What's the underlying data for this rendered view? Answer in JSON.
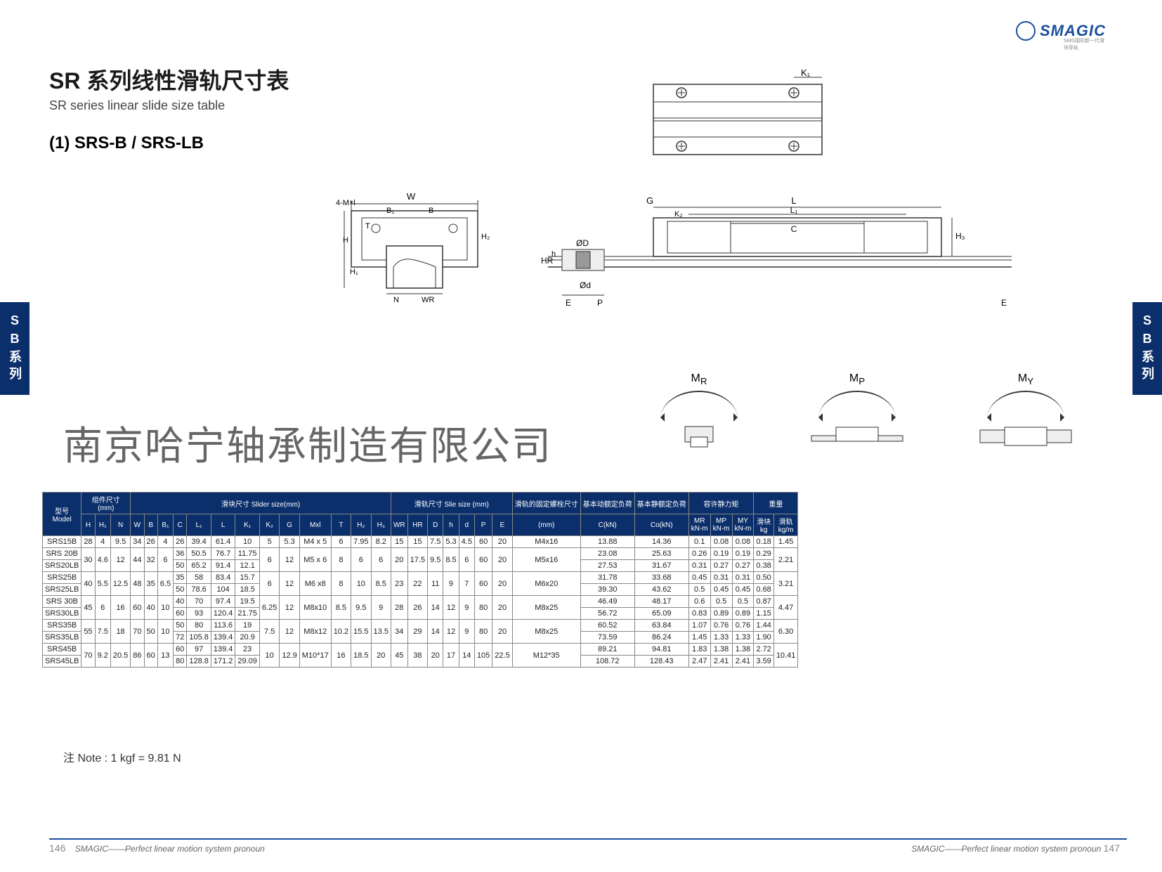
{
  "brand": {
    "name": "SMAGIC",
    "tagline": "SMG国际新一代滑块导轨",
    "color": "#1a4f9c"
  },
  "page": {
    "title_zh": "SR 系列线性滑轨尺寸表",
    "title_en": "SR series linear slide size table",
    "subtitle": "(1) SRS-B / SRS-LB",
    "side_tab": "SB系列",
    "company": "南京哈宁轴承制造有限公司",
    "note": "注 Note : 1 kgf = 9.81 N",
    "footer_text": "SMAGIC——Perfect linear motion system pronoun",
    "page_left": "146",
    "page_right": "147"
  },
  "diagrams": {
    "front_view": {
      "labels": [
        "4-M×l",
        "W",
        "B₁",
        "B",
        "T",
        "H",
        "H₁",
        "N",
        "WR",
        "H₂"
      ]
    },
    "top_side_view": {
      "labels": [
        "K₁",
        "G",
        "L",
        "K₂",
        "L₁",
        "C",
        "ØD",
        "Ød",
        "HR",
        "h",
        "E",
        "P",
        "E",
        "H₃"
      ]
    },
    "moments": [
      {
        "symbol": "M",
        "sub": "R"
      },
      {
        "symbol": "M",
        "sub": "P"
      },
      {
        "symbol": "M",
        "sub": "Y"
      }
    ]
  },
  "table": {
    "header_groups": {
      "model": "型号\nModel",
      "assembly": "组件尺寸\n(mm)",
      "slider": "滑块尺寸 Slider size(mm)",
      "rail": "滑轨尺寸 Slie size (mm)",
      "bolt": "滑轨的固定螺栓尺寸",
      "dyn": "基本动额定负荷",
      "stat": "基本静额定负荷",
      "moment": "容许静力矩",
      "weight": "重量",
      "block_wt": "滑块\nkg",
      "rail_wt": "滑轨\nkg/m"
    },
    "columns": [
      "H",
      "H₁",
      "N",
      "W",
      "B",
      "B₁",
      "C",
      "L₁",
      "L",
      "K₁",
      "K₂",
      "G",
      "Mxl",
      "T",
      "H₂",
      "H₃",
      "WR",
      "HR",
      "D",
      "h",
      "d",
      "P",
      "E",
      "(mm)",
      "C(kN)",
      "Co(kN)",
      "MR\nkN-m",
      "MP\nkN-m",
      "MY\nkN-m"
    ],
    "rows": [
      {
        "model": "SRS15B",
        "H": "28",
        "H1": "4",
        "N": "9.5",
        "W": "34",
        "B": "26",
        "B1": "4",
        "C": "26",
        "L1": "39.4",
        "L": "61.4",
        "K1": "10",
        "K2": "5",
        "G": "5.3",
        "Mxl": "M4 x 5",
        "T": "6",
        "H2": "7.95",
        "H3": "8.2",
        "WR": "15",
        "HR": "15",
        "D": "7.5",
        "h": "5.3",
        "d": "4.5",
        "P": "60",
        "E": "20",
        "mm": "M4x16",
        "CkN": "13.88",
        "CokN": "14.36",
        "MR": "0.1",
        "MP": "0.08",
        "MY": "0.08",
        "blk": "0.18",
        "rail": "1.45",
        "span": 1
      },
      {
        "model": "SRS 20B",
        "H": "30",
        "H1": "4.6",
        "N": "12",
        "W": "44",
        "B": "32",
        "B1": "6",
        "C": "36",
        "L1": "50.5",
        "L": "76.7",
        "K1": "11.75",
        "K2": "6",
        "G": "12",
        "Mxl": "M5 x 6",
        "T": "8",
        "H2": "6",
        "H3": "6",
        "WR": "20",
        "HR": "17.5",
        "D": "9.5",
        "h": "8.5",
        "d": "6",
        "P": "60",
        "E": "20",
        "mm": "M5x16",
        "CkN": "23.08",
        "CokN": "25.63",
        "MR": "0.26",
        "MP": "0.19",
        "MY": "0.19",
        "blk": "0.29",
        "rail": "2.21",
        "span": 2
      },
      {
        "model": "SRS20LB",
        "C": "50",
        "L1": "65.2",
        "L": "91.4",
        "K1": "12.1",
        "CkN": "27.53",
        "CokN": "31.67",
        "MR": "0.31",
        "MP": "0.27",
        "MY": "0.27",
        "blk": "0.38"
      },
      {
        "model": "SRS25B",
        "H": "40",
        "H1": "5.5",
        "N": "12.5",
        "W": "48",
        "B": "35",
        "B1": "6.5",
        "C": "35",
        "L1": "58",
        "L": "83.4",
        "K1": "15.7",
        "K2": "6",
        "G": "12",
        "Mxl": "M6 x8",
        "T": "8",
        "H2": "10",
        "H3": "8.5",
        "WR": "23",
        "HR": "22",
        "D": "11",
        "h": "9",
        "d": "7",
        "P": "60",
        "E": "20",
        "mm": "M6x20",
        "CkN": "31.78",
        "CokN": "33.68",
        "MR": "0.45",
        "MP": "0.31",
        "MY": "0.31",
        "blk": "0.50",
        "rail": "3.21",
        "span": 2
      },
      {
        "model": "SRS25LB",
        "C": "50",
        "L1": "78.6",
        "L": "104",
        "K1": "18.5",
        "CkN": "39.30",
        "CokN": "43.62",
        "MR": "0.5",
        "MP": "0.45",
        "MY": "0.45",
        "blk": "0.68"
      },
      {
        "model": "SRS 30B",
        "H": "45",
        "H1": "6",
        "N": "16",
        "W": "60",
        "B": "40",
        "B1": "10",
        "C": "40",
        "L1": "70",
        "L": "97.4",
        "K1": "19.5",
        "K2": "6.25",
        "G": "12",
        "Mxl": "M8x10",
        "T": "8.5",
        "H2": "9.5",
        "H3": "9",
        "WR": "28",
        "HR": "26",
        "D": "14",
        "h": "12",
        "d": "9",
        "P": "80",
        "E": "20",
        "mm": "M8x25",
        "CkN": "46.49",
        "CokN": "48.17",
        "MR": "0.6",
        "MP": "0.5",
        "MY": "0.5",
        "blk": "0.87",
        "rail": "4.47",
        "span": 2
      },
      {
        "model": "SRS30LB",
        "C": "60",
        "L1": "93",
        "L": "120.4",
        "K1": "21.75",
        "CkN": "56.72",
        "CokN": "65.09",
        "MR": "0.83",
        "MP": "0.89",
        "MY": "0.89",
        "blk": "1.15"
      },
      {
        "model": "SRS35B",
        "H": "55",
        "H1": "7.5",
        "N": "18",
        "W": "70",
        "B": "50",
        "B1": "10",
        "C": "50",
        "L1": "80",
        "L": "113.6",
        "K1": "19",
        "K2": "7.5",
        "G": "12",
        "Mxl": "M8x12",
        "T": "10.2",
        "H2": "15.5",
        "H3": "13.5",
        "WR": "34",
        "HR": "29",
        "D": "14",
        "h": "12",
        "d": "9",
        "P": "80",
        "E": "20",
        "mm": "M8x25",
        "CkN": "60.52",
        "CokN": "63.84",
        "MR": "1.07",
        "MP": "0.76",
        "MY": "0.76",
        "blk": "1.44",
        "rail": "6.30",
        "span": 2
      },
      {
        "model": "SRS35LB",
        "C": "72",
        "L1": "105.8",
        "L": "139.4",
        "K1": "20.9",
        "CkN": "73.59",
        "CokN": "86.24",
        "MR": "1.45",
        "MP": "1.33",
        "MY": "1.33",
        "blk": "1.90"
      },
      {
        "model": "SRS45B",
        "H": "70",
        "H1": "9.2",
        "N": "20.5",
        "W": "86",
        "B": "60",
        "B1": "13",
        "C": "60",
        "L1": "97",
        "L": "139.4",
        "K1": "23",
        "K2": "10",
        "G": "12.9",
        "Mxl": "M10*17",
        "T": "16",
        "H2": "18.5",
        "H3": "20",
        "WR": "45",
        "HR": "38",
        "D": "20",
        "h": "17",
        "d": "14",
        "P": "105",
        "E": "22.5",
        "mm": "M12*35",
        "CkN": "89.21",
        "CokN": "94.81",
        "MR": "1.83",
        "MP": "1.38",
        "MY": "1.38",
        "blk": "2.72",
        "rail": "10.41",
        "span": 2
      },
      {
        "model": "SRS45LB",
        "C": "80",
        "L1": "128.8",
        "L": "171.2",
        "K1": "29.09",
        "CkN": "108.72",
        "CokN": "128.43",
        "MR": "2.47",
        "MP": "2.41",
        "MY": "2.41",
        "blk": "3.59"
      }
    ],
    "colors": {
      "header_bg": "#0b2f6b",
      "header_fg": "#ffffff",
      "border": "#888888",
      "cell_bg": "#ffffff"
    }
  }
}
